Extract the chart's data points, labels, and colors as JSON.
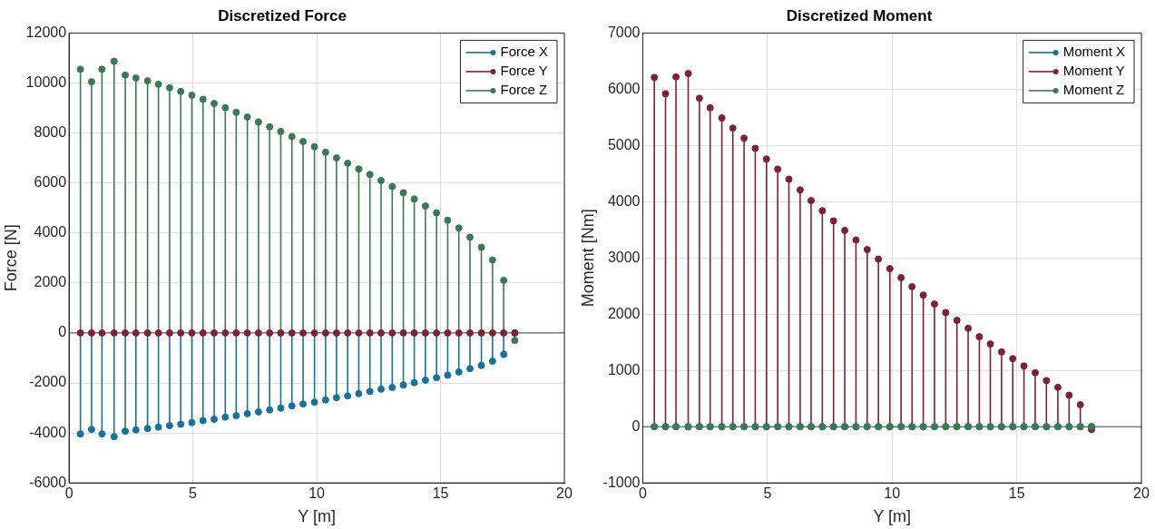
{
  "chart_data": [
    {
      "type": "lollipop",
      "title": "Discretized Force",
      "xlabel": "Y [m]",
      "ylabel": "Force [N]",
      "x": [
        0.46,
        0.91,
        1.33,
        1.82,
        2.27,
        2.7,
        3.17,
        3.61,
        4.06,
        4.51,
        4.96,
        5.41,
        5.86,
        6.31,
        6.75,
        7.2,
        7.65,
        8.1,
        8.55,
        9,
        9.45,
        9.91,
        10.36,
        10.8,
        11.25,
        11.7,
        12.15,
        12.6,
        13.05,
        13.5,
        13.94,
        14.39,
        14.84,
        15.29,
        15.74,
        16.19,
        16.65,
        17.1,
        17.55,
        18
      ],
      "series": [
        {
          "name": "Force X",
          "color": "#16729b",
          "values": [
            -4040,
            -3860,
            -4040,
            -4150,
            -3930,
            -3880,
            -3820,
            -3770,
            -3710,
            -3650,
            -3590,
            -3510,
            -3450,
            -3370,
            -3310,
            -3230,
            -3160,
            -3080,
            -3010,
            -2920,
            -2840,
            -2770,
            -2680,
            -2590,
            -2520,
            -2430,
            -2340,
            -2250,
            -2180,
            -2080,
            -1990,
            -1890,
            -1790,
            -1690,
            -1560,
            -1430,
            -1300,
            -1130,
            -860,
            0
          ]
        },
        {
          "name": "Force Y",
          "color": "#7e2135",
          "values": [
            0,
            0,
            0,
            0,
            0,
            0,
            0,
            0,
            0,
            0,
            0,
            0,
            0,
            0,
            0,
            0,
            0,
            0,
            0,
            0,
            0,
            0,
            0,
            0,
            0,
            0,
            0,
            0,
            0,
            0,
            0,
            0,
            0,
            0,
            0,
            0,
            0,
            0,
            0,
            0
          ]
        },
        {
          "name": "Force Z",
          "color": "#3a7a52",
          "values": [
            10550,
            10050,
            10550,
            10870,
            10320,
            10200,
            10090,
            9950,
            9810,
            9660,
            9510,
            9350,
            9180,
            9010,
            8830,
            8640,
            8440,
            8250,
            8060,
            7860,
            7660,
            7450,
            7230,
            7000,
            6790,
            6560,
            6340,
            6100,
            5860,
            5610,
            5360,
            5080,
            4810,
            4510,
            4200,
            3830,
            3430,
            2920,
            2100,
            -300
          ]
        }
      ],
      "xlim": [
        0,
        20
      ],
      "xticks": [
        0,
        5,
        10,
        15,
        20
      ],
      "ylim": [
        -6000,
        12000
      ],
      "yticks": [
        -6000,
        -4000,
        -2000,
        0,
        2000,
        4000,
        6000,
        8000,
        10000,
        12000
      ],
      "grid": true,
      "legend": "top right",
      "marker": "circle"
    },
    {
      "type": "lollipop",
      "title": "Discretized Moment",
      "xlabel": "Y [m]",
      "ylabel": "Moment [Nm]",
      "x": [
        0.46,
        0.91,
        1.33,
        1.82,
        2.27,
        2.7,
        3.17,
        3.61,
        4.06,
        4.51,
        4.96,
        5.41,
        5.86,
        6.31,
        6.75,
        7.2,
        7.65,
        8.1,
        8.55,
        9,
        9.45,
        9.91,
        10.36,
        10.8,
        11.25,
        11.7,
        12.15,
        12.6,
        13.05,
        13.5,
        13.94,
        14.39,
        14.84,
        15.29,
        15.74,
        16.19,
        16.65,
        17.1,
        17.55,
        18
      ],
      "series": [
        {
          "name": "Moment X",
          "color": "#16729b",
          "values": [
            0,
            0,
            0,
            0,
            0,
            0,
            0,
            0,
            0,
            0,
            0,
            0,
            0,
            0,
            0,
            0,
            0,
            0,
            0,
            0,
            0,
            0,
            0,
            0,
            0,
            0,
            0,
            0,
            0,
            0,
            0,
            0,
            0,
            0,
            0,
            0,
            0,
            0,
            0,
            0
          ]
        },
        {
          "name": "Moment Y",
          "color": "#7e2135",
          "values": [
            6210,
            5920,
            6220,
            6280,
            5840,
            5670,
            5490,
            5310,
            5130,
            4950,
            4760,
            4580,
            4400,
            4210,
            4020,
            3840,
            3660,
            3490,
            3320,
            3150,
            2980,
            2810,
            2650,
            2490,
            2340,
            2180,
            2030,
            1890,
            1750,
            1600,
            1470,
            1330,
            1210,
            1080,
            960,
            820,
            700,
            560,
            390,
            -50
          ]
        },
        {
          "name": "Moment Z",
          "color": "#3a7a52",
          "values": [
            0,
            0,
            0,
            0,
            0,
            0,
            0,
            0,
            0,
            0,
            0,
            0,
            0,
            0,
            0,
            0,
            0,
            0,
            0,
            0,
            0,
            0,
            0,
            0,
            0,
            0,
            0,
            0,
            0,
            0,
            0,
            0,
            0,
            0,
            0,
            0,
            0,
            0,
            0,
            0
          ]
        }
      ],
      "xlim": [
        0,
        20
      ],
      "xticks": [
        0,
        5,
        10,
        15,
        20
      ],
      "ylim": [
        -1000,
        7000
      ],
      "yticks": [
        -1000,
        0,
        1000,
        2000,
        3000,
        4000,
        5000,
        6000,
        7000
      ],
      "grid": true,
      "legend": "top right",
      "marker": "circle"
    }
  ]
}
